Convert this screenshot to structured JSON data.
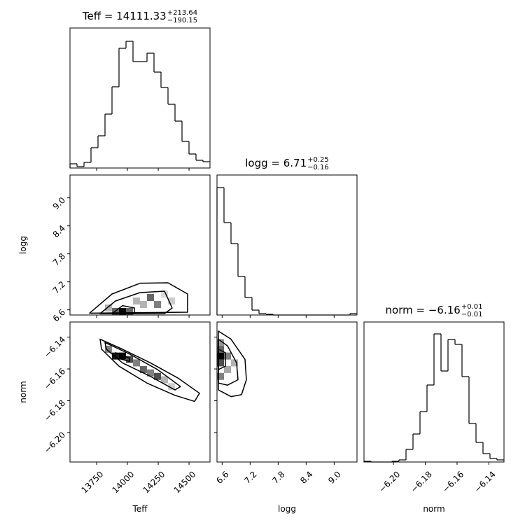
{
  "chart_data": {
    "type": "corner",
    "color": "#000000",
    "parameters": [
      {
        "label": "Teff",
        "title": "Teff = 14111.33",
        "title_upper": "+213.64",
        "title_lower": "−190.15",
        "lim": [
          13534,
          14670
        ],
        "ticks": [
          13750,
          14000,
          14250,
          14500
        ],
        "bins": [
          13534,
          13590.8,
          13647.6,
          13704.4,
          13761.2,
          13818,
          13874.8,
          13931.6,
          13988.4,
          14045.2,
          14102,
          14158.8,
          14215.6,
          14272.4,
          14329.2,
          14386,
          14442.8,
          14499.6,
          14556.4,
          14613.2,
          14670
        ],
        "counts": [
          6,
          2,
          8,
          29,
          46,
          77,
          116,
          171,
          181,
          152,
          152,
          164,
          137,
          115,
          91,
          67,
          38,
          20,
          11,
          9
        ],
        "hist_ylim": [
          0,
          200
        ]
      },
      {
        "label": "logg",
        "title": "logg = 6.71",
        "title_upper": "+0.25",
        "title_lower": "−0.16",
        "lim": [
          6.49,
          9.49
        ],
        "ticks": [
          6.6,
          7.2,
          7.8,
          8.4,
          {
            "value": 9,
            "label": "9.0"
          }
        ],
        "bins": [
          6.49,
          6.64,
          6.79,
          6.94,
          7.09,
          7.24,
          7.39,
          7.54,
          7.69,
          7.84,
          7.99,
          8.14,
          8.29,
          8.44,
          8.59,
          8.74,
          8.89,
          9.04,
          9.19,
          9.34,
          9.49
        ],
        "counts": [
          182,
          132,
          102,
          55,
          25,
          7,
          2,
          1,
          0,
          0,
          0,
          0,
          0,
          0,
          0,
          0,
          0,
          0,
          0,
          2
        ],
        "hist_ylim": [
          0,
          200
        ]
      },
      {
        "label": "norm",
        "title": "norm = −6.16",
        "title_upper": "+0.01",
        "title_lower": "−0.01",
        "lim": [
          -6.2185,
          -6.1305
        ],
        "ticks": [
          {
            "value": -6.2,
            "label": "−6.20"
          },
          {
            "value": -6.18,
            "label": "−6.18"
          },
          {
            "value": -6.16,
            "label": "−6.16"
          },
          {
            "value": -6.14,
            "label": "−6.14"
          }
        ],
        "bins": [
          -6.2185,
          -6.2141,
          -6.2097,
          -6.2053,
          -6.2009,
          -6.1965,
          -6.1921,
          -6.1877,
          -6.1833,
          -6.1789,
          -6.1745,
          -6.1701,
          -6.1657,
          -6.1613,
          -6.1569,
          -6.1525,
          -6.1481,
          -6.1437,
          -6.1393,
          -6.1349,
          -6.1305
        ],
        "counts": [
          1,
          0,
          0,
          0,
          1,
          3,
          18,
          40,
          72,
          110,
          183,
          130,
          175,
          168,
          122,
          55,
          28,
          12,
          5,
          3
        ],
        "hist_ylim": [
          0,
          200
        ]
      }
    ],
    "pairs": [
      {
        "x_param": 0,
        "y_param": 1,
        "cells": {
          "x": [
            13960,
            13903,
            14017,
            14187,
            14244,
            14130,
            14074,
            13846,
            14358,
            14301
          ],
          "y": [
            6.565,
            6.565,
            6.565,
            6.865,
            6.715,
            6.715,
            6.79,
            6.64,
            6.79,
            6.94
          ],
          "values": [
            1.0,
            0.6,
            0.6,
            0.6,
            0.5,
            0.3,
            0.3,
            0.3,
            0.2,
            0.15
          ]
        },
        "contours": [
          {
            "x": [
              13693,
              13875,
              14102,
              14329,
              14488,
              14488
            ],
            "y": [
              6.53,
              6.94,
              7.17,
              7.18,
              6.94,
              6.55
            ]
          },
          {
            "x": [
              13778,
              13903,
              14102,
              14301,
              14363,
              14301
            ],
            "y": [
              6.52,
              6.79,
              6.97,
              7.0,
              6.64,
              6.52
            ]
          },
          {
            "x": [
              13875,
              13960,
              14057,
              14057
            ],
            "y": [
              6.52,
              6.69,
              6.64,
              6.52
            ]
          }
        ]
      },
      {
        "x_param": 0,
        "y_param": 2,
        "cells": {
          "x": [
            13903,
            13960,
            14017,
            14074,
            14130,
            14187,
            14244,
            13846,
            14301,
            14358
          ],
          "y": [
            -6.1519,
            -6.1519,
            -6.154,
            -6.1562,
            -6.1604,
            -6.1625,
            -6.1647,
            -6.1476,
            -6.1668,
            -6.1711
          ],
          "values": [
            0.9,
            1.0,
            0.7,
            0.5,
            0.6,
            0.5,
            0.7,
            0.5,
            0.3,
            0.2
          ]
        },
        "contours": [
          {
            "x": [
              13778,
              13960,
              14187,
              14414,
              14585,
              14545,
              14386,
              14159,
              13932,
              13790
            ],
            "y": [
              -6.1413,
              -6.1476,
              -6.1562,
              -6.1659,
              -6.1753,
              -6.1804,
              -6.1766,
              -6.1689,
              -6.1583,
              -6.1476
            ]
          },
          {
            "x": [
              13818,
              14017,
              14244,
              14431,
              14386,
              14187,
              13960,
              13829
            ],
            "y": [
              -6.1434,
              -6.1506,
              -6.1604,
              -6.1711,
              -6.1732,
              -6.1647,
              -6.1562,
              -6.1476
            ]
          },
          {
            "x": [
              13903,
              14017,
              14017,
              13903
            ],
            "y": [
              -6.1498,
              -6.1532,
              -6.1553,
              -6.1528
            ]
          }
        ]
      },
      {
        "x_param": 1,
        "y_param": 2,
        "cells": {
          "x": [
            6.565,
            6.565,
            6.565,
            6.715,
            6.565,
            6.715,
            6.865,
            6.565
          ],
          "y": [
            -6.1519,
            -6.1562,
            -6.1476,
            -6.1519,
            -6.1647,
            -6.1604,
            -6.1562,
            -6.1434
          ],
          "values": [
            1.0,
            0.7,
            0.6,
            0.5,
            0.5,
            0.35,
            0.3,
            0.4
          ]
        },
        "contours": [
          {
            "x": [
              6.52,
              6.79,
              7.09,
              7.12,
              7.015,
              6.79,
              6.52
            ],
            "y": [
              -6.1362,
              -6.1413,
              -6.154,
              -6.1668,
              -6.1762,
              -6.1774,
              -6.1732
            ]
          },
          {
            "x": [
              6.52,
              6.715,
              6.91,
              6.94,
              6.715,
              6.52
            ],
            "y": [
              -6.1413,
              -6.1455,
              -6.1562,
              -6.1668,
              -6.1702,
              -6.1689
            ]
          },
          {
            "x": [
              6.52,
              6.67,
              6.67,
              6.52
            ],
            "y": [
              -6.1476,
              -6.1498,
              -6.1583,
              -6.1604
            ]
          }
        ]
      }
    ]
  }
}
